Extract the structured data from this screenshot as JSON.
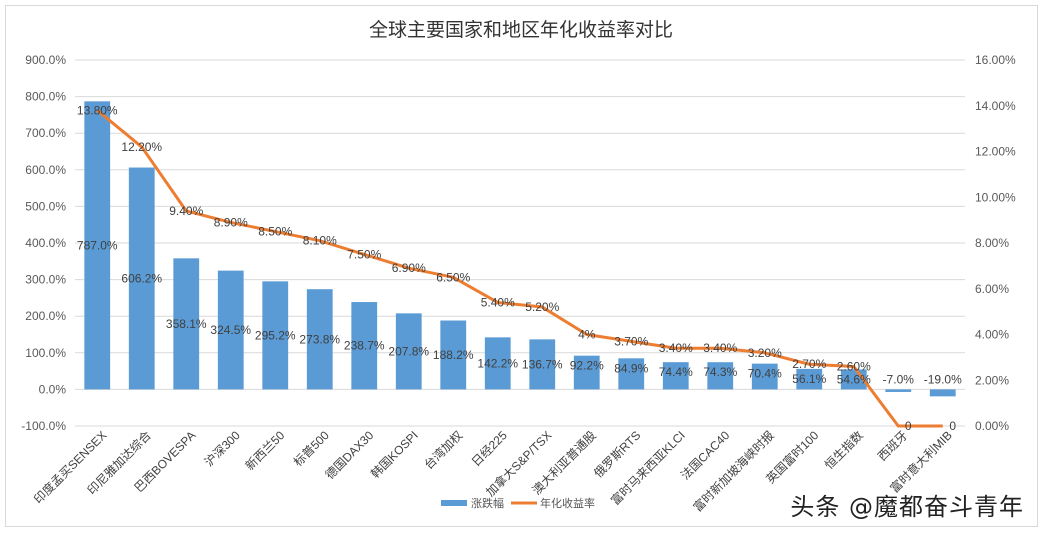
{
  "chart_data": {
    "type": "bar+line",
    "title": "全球主要国家和地区年化收益率对比",
    "categories": [
      "印度孟买SENSEX",
      "印尼雅加达综合",
      "巴西BOVESPA",
      "沪深300",
      "新西兰50",
      "标普500",
      "德国DAX30",
      "韩国KOSPI",
      "台湾加权",
      "日经225",
      "加拿大S&P/TSX",
      "澳大利亚普通股",
      "俄罗斯RTS",
      "富时马来西亚KLCI",
      "法国CAC40",
      "富时新加坡海峡时报",
      "英国富时100",
      "恒生指数",
      "西班牙",
      "富时意大利MIB"
    ],
    "series": [
      {
        "name": "涨跌幅",
        "type": "bar",
        "axis": "left",
        "color": "#5b9bd5",
        "values": [
          787.0,
          606.2,
          358.1,
          324.5,
          295.2,
          273.8,
          238.7,
          207.8,
          188.2,
          142.2,
          136.7,
          92.2,
          84.9,
          74.4,
          74.3,
          70.4,
          56.1,
          54.6,
          -7.0,
          -19.0
        ],
        "labels": [
          "787.0%",
          "606.2%",
          "358.1%",
          "324.5%",
          "295.2%",
          "273.8%",
          "238.7%",
          "207.8%",
          "188.2%",
          "142.2%",
          "136.7%",
          "92.2%",
          "84.9%",
          "74.4%",
          "74.3%",
          "70.4%",
          "56.1%",
          "54.6%",
          "-7.0%",
          "-19.0%"
        ]
      },
      {
        "name": "年化收益率",
        "type": "line",
        "axis": "right",
        "color": "#ed7d31",
        "values": [
          13.8,
          12.2,
          9.4,
          8.9,
          8.5,
          8.1,
          7.5,
          6.9,
          6.5,
          5.4,
          5.2,
          4.0,
          3.7,
          3.4,
          3.4,
          3.2,
          2.7,
          2.6,
          0,
          0
        ],
        "labels": [
          "13.80%",
          "12.20%",
          "9.40%",
          "8.90%",
          "8.50%",
          "8.10%",
          "7.50%",
          "6.90%",
          "6.50%",
          "5.40%",
          "5.20%",
          "4%",
          "3.70%",
          "3.40%",
          "3.40%",
          "3.20%",
          "2.70%",
          "2.60%",
          "0",
          "0"
        ]
      }
    ],
    "left_axis": {
      "ylim": [
        -100,
        900
      ],
      "ticks": [
        "900.0%",
        "800.0%",
        "700.0%",
        "600.0%",
        "500.0%",
        "400.0%",
        "300.0%",
        "200.0%",
        "100.0%",
        "0.0%",
        "-100.0%"
      ]
    },
    "right_axis": {
      "ylim": [
        0,
        16
      ],
      "ticks": [
        "16.00%",
        "14.00%",
        "12.00%",
        "10.00%",
        "8.00%",
        "6.00%",
        "4.00%",
        "2.00%",
        "0.00%"
      ]
    },
    "xlabel": "",
    "ylabel": "",
    "grid": true,
    "legend_position": "bottom"
  },
  "legend": {
    "bar_label": "涨跌幅",
    "line_label": "年化收益率"
  },
  "watermark": "头条 @魔都奋斗青年"
}
